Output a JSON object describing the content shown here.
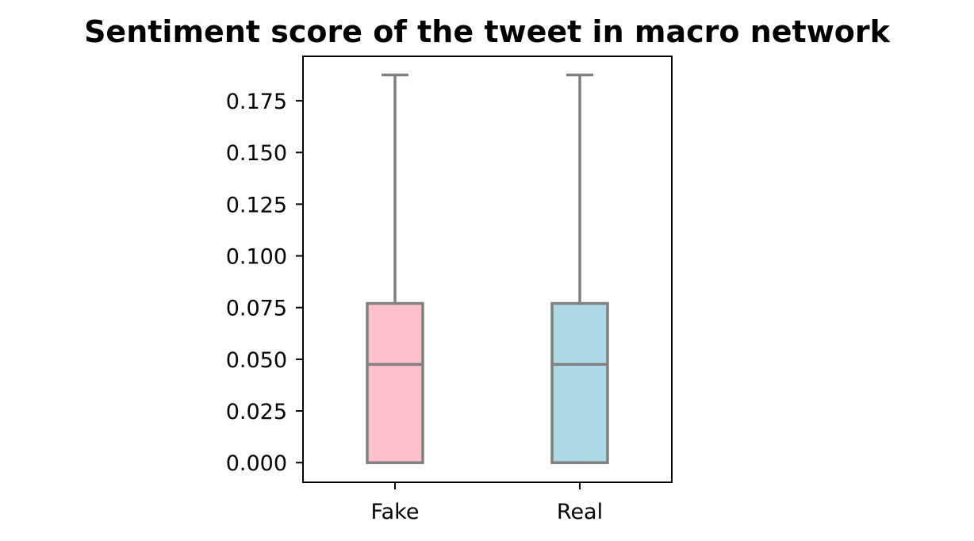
{
  "chart_data": {
    "type": "box",
    "title": "Sentiment score of the tweet in macro network",
    "xlabel": "",
    "ylabel": "",
    "categories": [
      "Fake",
      "Real"
    ],
    "boxes": [
      {
        "category": "Fake",
        "min": 0.0,
        "q1": 0.0,
        "median": 0.0475,
        "q3": 0.077,
        "max": 0.1875,
        "fill": "#ffc0cb"
      },
      {
        "category": "Real",
        "min": 0.0,
        "q1": 0.0,
        "median": 0.0475,
        "q3": 0.077,
        "max": 0.1875,
        "fill": "#add8e6"
      }
    ],
    "ylim": [
      -0.0095,
      0.1965
    ],
    "yticks": [
      0.0,
      0.025,
      0.05,
      0.075,
      0.1,
      0.125,
      0.15,
      0.175
    ],
    "ytick_labels": [
      "0.000",
      "0.025",
      "0.050",
      "0.075",
      "0.100",
      "0.125",
      "0.150",
      "0.175"
    ],
    "line_color": "#808080",
    "grid": false,
    "legend": "none"
  }
}
